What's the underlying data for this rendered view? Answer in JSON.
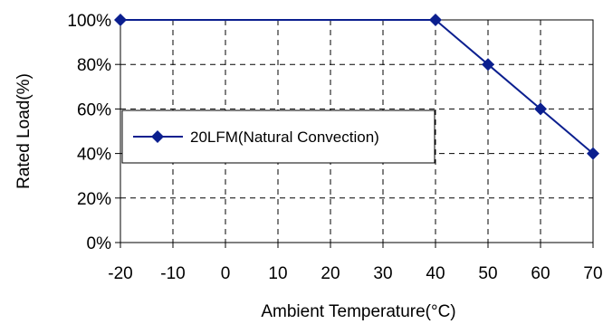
{
  "chart_data": {
    "type": "line",
    "xlabel": "Ambient Temperature(°C)",
    "ylabel": "Rated Load(%)",
    "xlim": [
      -20,
      70
    ],
    "ylim": [
      0,
      100
    ],
    "x_ticks": [
      -20,
      -10,
      0,
      10,
      20,
      30,
      40,
      50,
      60,
      70
    ],
    "y_ticks": [
      0,
      20,
      40,
      60,
      80,
      100
    ],
    "x_tick_labels": [
      "-20",
      "-10",
      "0",
      "10",
      "20",
      "30",
      "40",
      "50",
      "60",
      "70"
    ],
    "y_tick_labels": [
      "0%",
      "20%",
      "40%",
      "60%",
      "80%",
      "100%"
    ],
    "grid": true,
    "grid_style": "dashed",
    "legend_position": "middle-left",
    "series": [
      {
        "name": "20LFM(Natural Convection)",
        "color": "#0b1f8f",
        "marker": "diamond",
        "x": [
          -20,
          40,
          50,
          60,
          70
        ],
        "y": [
          100,
          100,
          80,
          60,
          40
        ]
      }
    ]
  }
}
